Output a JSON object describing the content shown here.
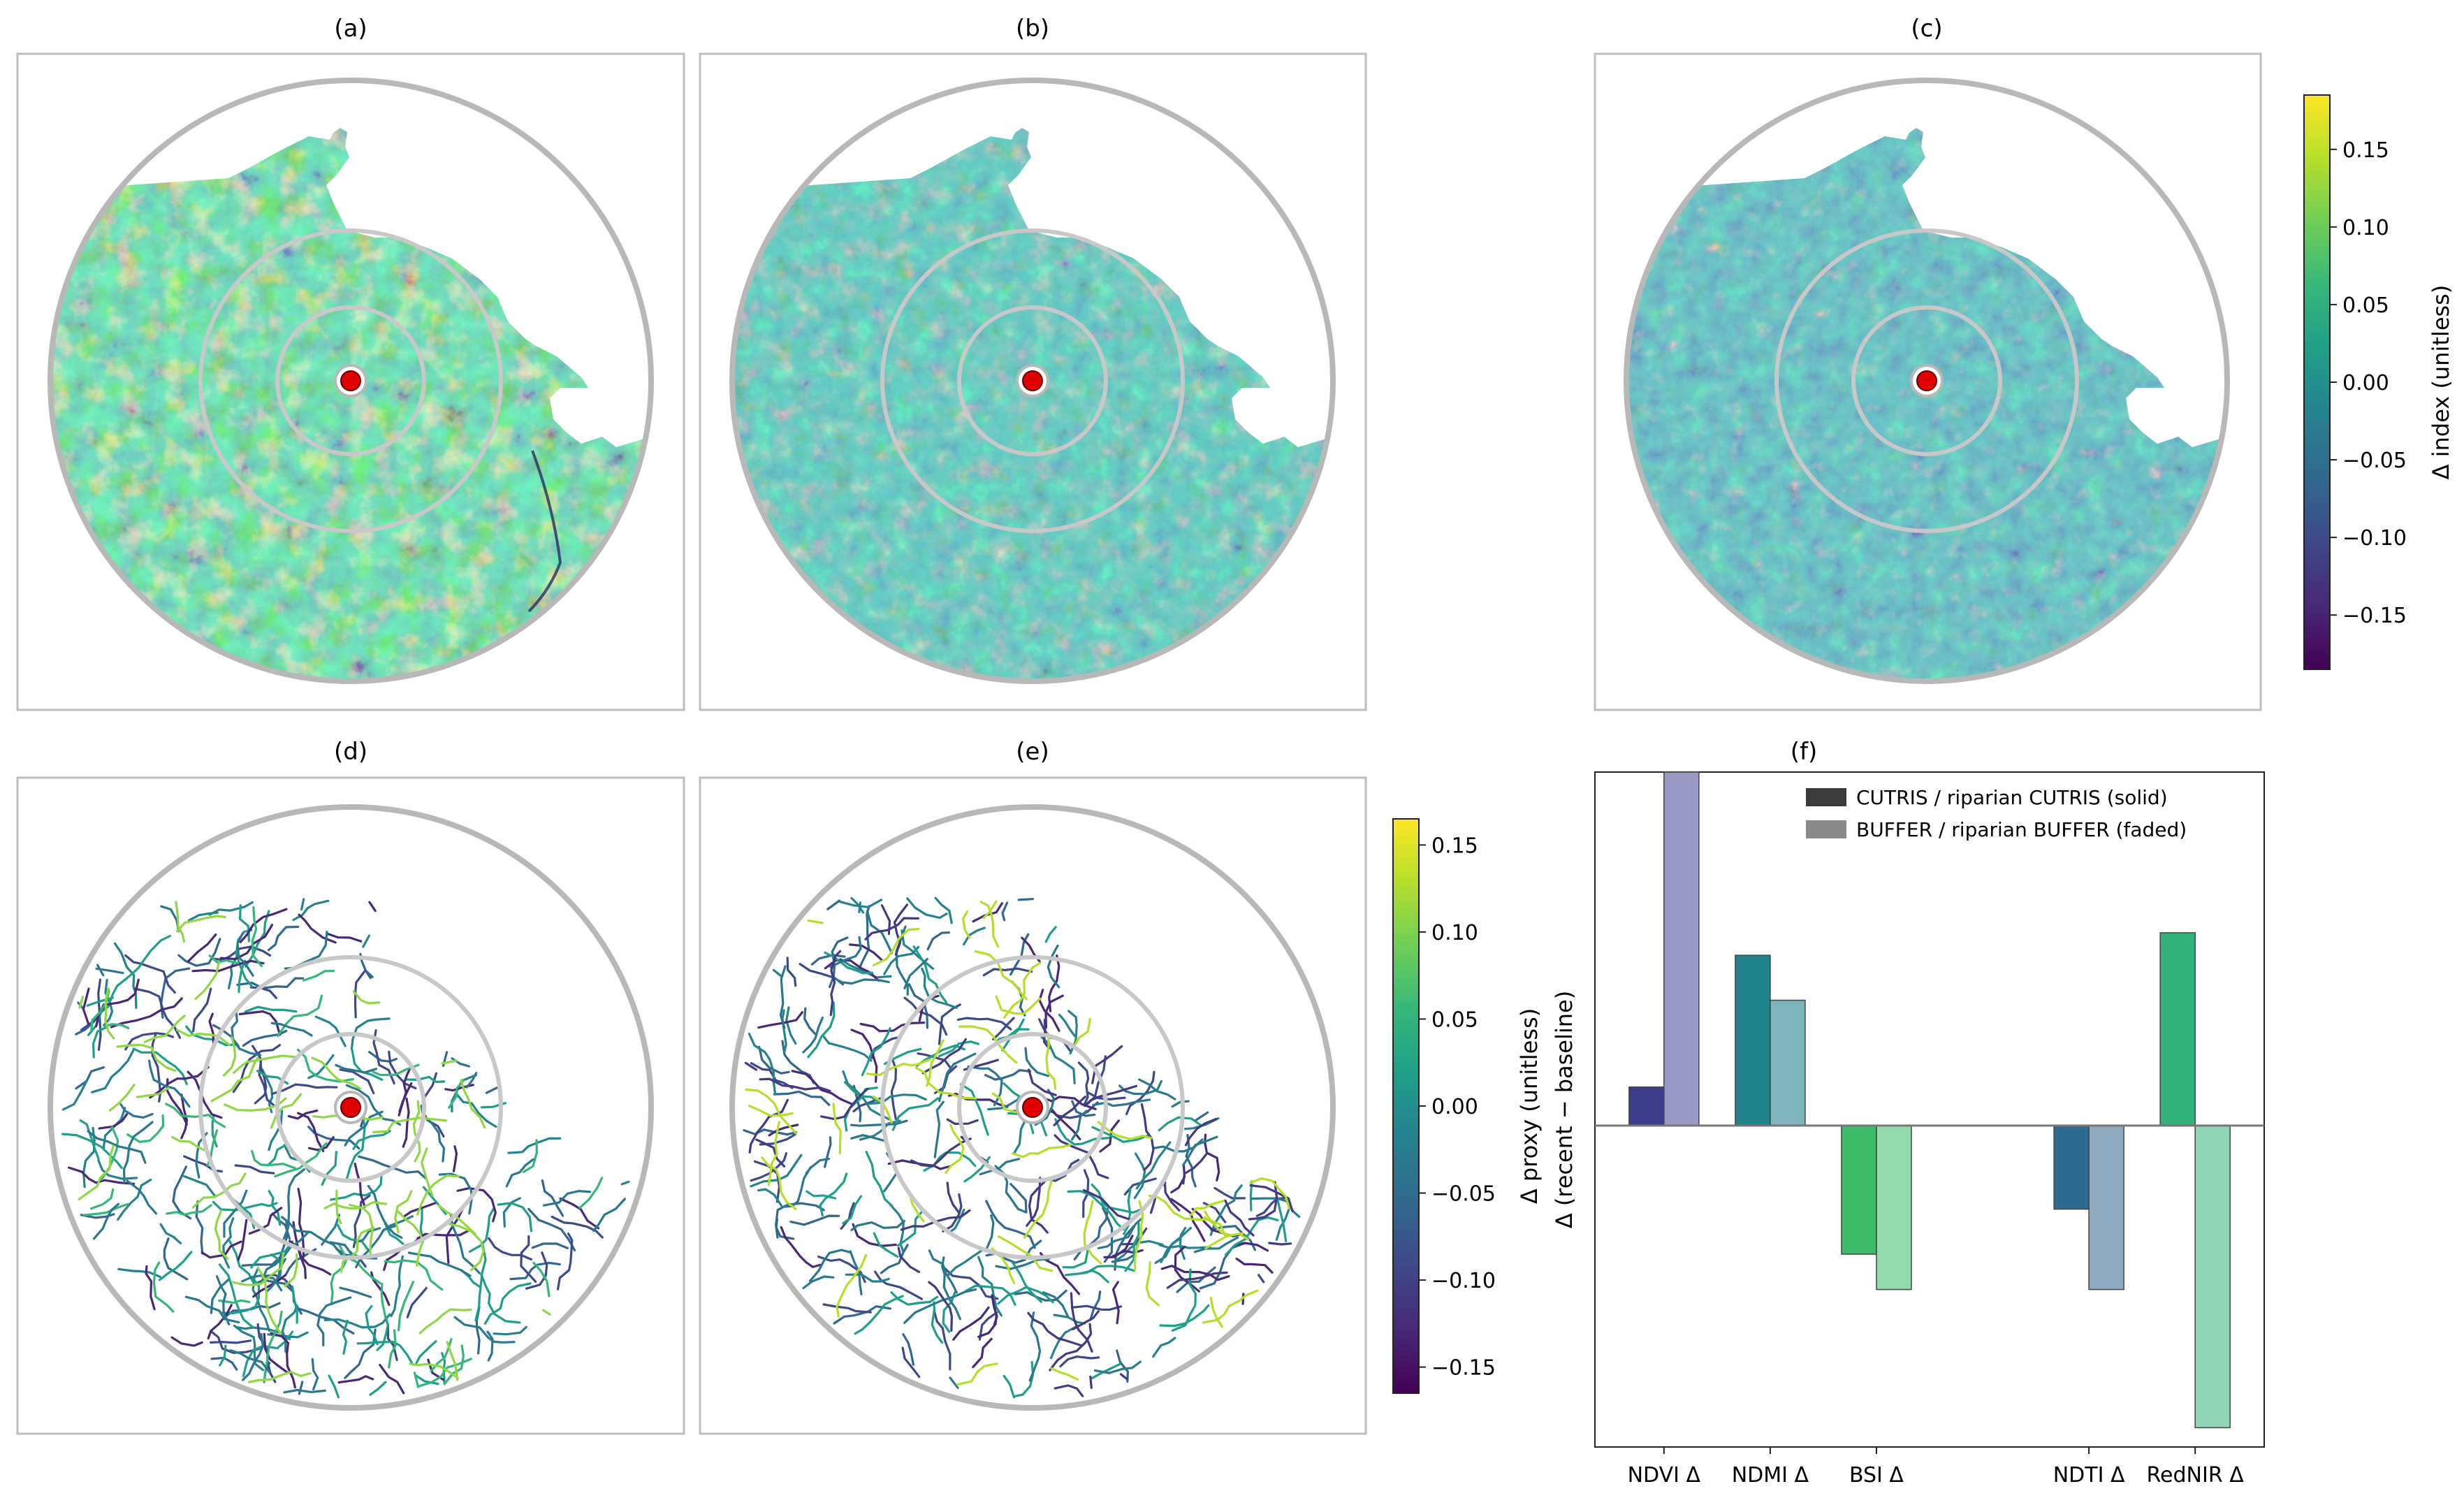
{
  "panels": {
    "a": {
      "label": "(a)"
    },
    "b": {
      "label": "(b)"
    },
    "c": {
      "label": "(c)"
    },
    "d": {
      "label": "(d)"
    },
    "e": {
      "label": "(e)"
    },
    "f": {
      "label": "(f)"
    }
  },
  "colorbar_index": {
    "label": "Δ index (unitless)",
    "ticks": [
      "0.15",
      "0.10",
      "0.05",
      "0.00",
      "−0.05",
      "−0.10",
      "−0.15"
    ],
    "tick_values": [
      0.15,
      0.1,
      0.05,
      0.0,
      -0.05,
      -0.1,
      -0.15
    ],
    "vmin": -0.185,
    "vmax": 0.185
  },
  "colorbar_proxy": {
    "label": "Δ proxy (unitless)",
    "ticks": [
      "0.15",
      "0.10",
      "0.05",
      "0.00",
      "−0.05",
      "−0.10",
      "−0.15"
    ],
    "tick_values": [
      0.15,
      0.1,
      0.05,
      0.0,
      -0.05,
      -0.1,
      -0.15
    ],
    "vmin": -0.165,
    "vmax": 0.165
  },
  "colors": {
    "viridis": [
      "#440154",
      "#482878",
      "#3e4989",
      "#31688e",
      "#26828e",
      "#1f9e89",
      "#35b779",
      "#6ece58",
      "#b5de2b",
      "#fde725"
    ],
    "marker": "#e00000",
    "ring": "#b8b8b8",
    "frame": "#bdbdbd"
  },
  "chart_data": {
    "type": "bar",
    "title": "",
    "xlabel": "",
    "ylabel": "Δ (recent − baseline)",
    "categories": [
      "NDVI Δ",
      "NDMI Δ",
      "BSI Δ",
      "",
      "NDTI Δ",
      "RedNIR Δ"
    ],
    "ylim": [
      -1.0,
      1.1
    ],
    "y_ticks_shown": false,
    "legend_position": "top-right",
    "series": [
      {
        "name": "CUTRIS / riparian CUTRIS (solid)",
        "values": [
          0.12,
          0.53,
          -0.4,
          null,
          -0.26,
          0.6
        ],
        "colors": [
          "#3b3d8a",
          "#21828a",
          "#3ebc6c",
          null,
          "#2e6a92",
          "#32b17a"
        ],
        "alpha": 1.0
      },
      {
        "name": "BUFFER / riparian BUFFER (faded)",
        "values": [
          1.1,
          0.39,
          -0.51,
          null,
          -0.51,
          -0.94
        ],
        "colors": [
          "#9a99c4",
          "#7fb4bd",
          "#94d9aa",
          null,
          "#8fa9bf",
          "#92d5b6"
        ],
        "alpha": 0.55
      }
    ]
  }
}
